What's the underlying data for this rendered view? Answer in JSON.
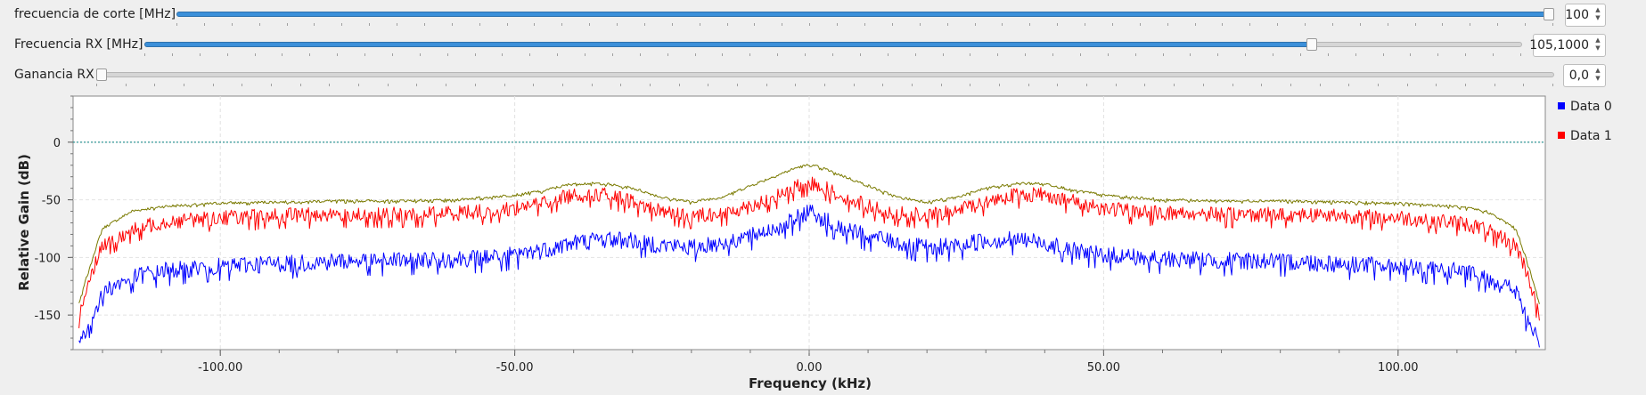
{
  "controls": [
    {
      "label": "frecuencia de corte [MHz]",
      "value": "100",
      "position": 1.0
    },
    {
      "label": "Frecuencia RX [MHz]",
      "value": "105,1000",
      "position": 0.85
    },
    {
      "label": "Ganancia RX",
      "value": "0,0",
      "position": 0.0
    }
  ],
  "chart_data": {
    "type": "line",
    "title": "",
    "xlabel": "Frequency (kHz)",
    "ylabel": "Relative Gain (dB)",
    "xlim": [
      -125,
      125
    ],
    "ylim": [
      -180,
      40
    ],
    "x_ticks": [
      -100,
      -50,
      0,
      50,
      100
    ],
    "x_tick_labels": [
      "-100.00",
      "-50.00",
      "0.00",
      "50.00",
      "100.00"
    ],
    "y_ticks": [
      0,
      -50,
      -100,
      -150
    ],
    "y_tick_labels": [
      "0",
      "-50",
      "-100",
      "-150"
    ],
    "grid": true,
    "legend_position": "right",
    "reference_line": {
      "y": 0,
      "color": "#007f7f"
    },
    "series": [
      {
        "name": "Data 0",
        "color": "#0000ff",
        "x": [
          -124,
          -122,
          -120,
          -115,
          -110,
          -100,
          -90,
          -80,
          -70,
          -60,
          -50,
          -45,
          -40,
          -35,
          -30,
          -25,
          -20,
          -15,
          -10,
          -5,
          -2,
          0,
          2,
          5,
          10,
          15,
          20,
          25,
          30,
          35,
          40,
          45,
          50,
          60,
          70,
          80,
          90,
          100,
          110,
          115,
          120,
          122,
          124
        ],
        "y": [
          -175,
          -155,
          -130,
          -118,
          -112,
          -108,
          -106,
          -104,
          -103,
          -102,
          -98,
          -94,
          -88,
          -85,
          -86,
          -90,
          -92,
          -88,
          -82,
          -74,
          -66,
          -60,
          -66,
          -74,
          -82,
          -88,
          -92,
          -90,
          -86,
          -85,
          -88,
          -94,
          -98,
          -102,
          -103,
          -104,
          -106,
          -108,
          -112,
          -118,
          -130,
          -155,
          -175
        ]
      },
      {
        "name": "Data 1",
        "color": "#ff0000",
        "x": [
          -124,
          -122,
          -120,
          -115,
          -110,
          -100,
          -90,
          -80,
          -70,
          -60,
          -50,
          -45,
          -40,
          -35,
          -30,
          -25,
          -20,
          -15,
          -10,
          -5,
          -2,
          0,
          2,
          5,
          10,
          15,
          20,
          25,
          30,
          35,
          40,
          45,
          50,
          60,
          70,
          80,
          90,
          100,
          110,
          115,
          120,
          122,
          124
        ],
        "y": [
          -150,
          -115,
          -90,
          -76,
          -70,
          -66,
          -64,
          -63,
          -63,
          -62,
          -58,
          -52,
          -46,
          -46,
          -52,
          -60,
          -64,
          -62,
          -56,
          -46,
          -38,
          -36,
          -38,
          -46,
          -56,
          -62,
          -64,
          -60,
          -52,
          -46,
          -46,
          -52,
          -58,
          -62,
          -63,
          -63,
          -64,
          -66,
          -70,
          -76,
          -90,
          -115,
          -150
        ]
      },
      {
        "name": "",
        "color": "#7a7a00",
        "x": [
          -124,
          -122,
          -120,
          -115,
          -110,
          -100,
          -90,
          -80,
          -70,
          -60,
          -50,
          -45,
          -40,
          -35,
          -30,
          -25,
          -20,
          -15,
          -10,
          -5,
          -2,
          0,
          2,
          5,
          10,
          15,
          20,
          25,
          30,
          35,
          40,
          45,
          50,
          60,
          70,
          80,
          90,
          100,
          110,
          115,
          120,
          122,
          124
        ],
        "y": [
          -140,
          -105,
          -75,
          -60,
          -56,
          -53,
          -52,
          -51,
          -51,
          -50,
          -46,
          -42,
          -36,
          -36,
          -40,
          -48,
          -52,
          -48,
          -38,
          -28,
          -22,
          -20,
          -22,
          -28,
          -38,
          -48,
          -52,
          -48,
          -40,
          -36,
          -36,
          -42,
          -46,
          -50,
          -51,
          -51,
          -52,
          -53,
          -56,
          -60,
          -75,
          -105,
          -140
        ]
      }
    ]
  }
}
